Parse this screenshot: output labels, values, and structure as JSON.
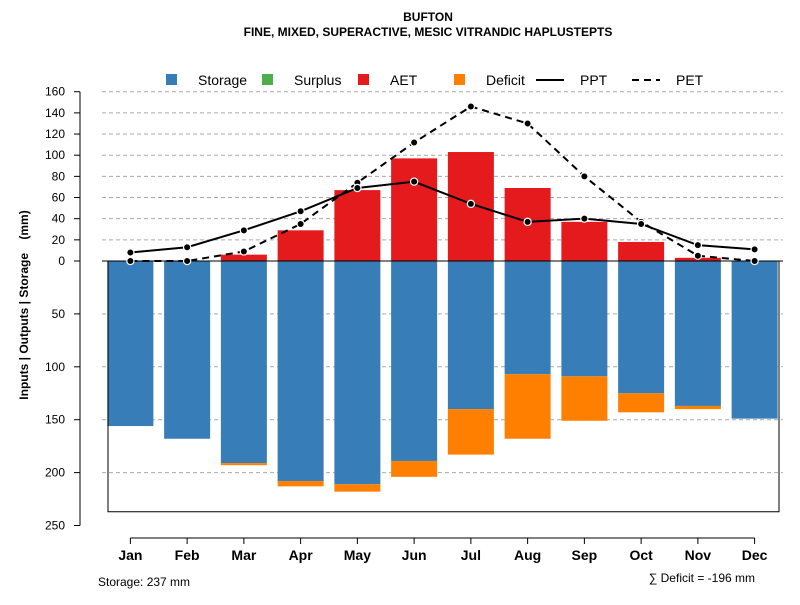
{
  "chart_data": {
    "type": "bar",
    "title": "BUFTON",
    "subtitle": "FINE, MIXED, SUPERACTIVE, MESIC VITRANDIC HAPLUSTEPTS",
    "ylabel": "Inputs | Outputs | Storage    (mm)",
    "categories": [
      "Jan",
      "Feb",
      "Mar",
      "Apr",
      "May",
      "Jun",
      "Jul",
      "Aug",
      "Sep",
      "Oct",
      "Nov",
      "Dec"
    ],
    "upper_ylim": [
      0,
      160
    ],
    "upper_ticks": [
      "0",
      "20",
      "40",
      "60",
      "80",
      "100",
      "120",
      "140",
      "160"
    ],
    "lower_ylim": [
      0,
      250
    ],
    "lower_ticks": [
      "50",
      "100",
      "150",
      "200",
      "250"
    ],
    "legend": [
      {
        "name": "Storage",
        "kind": "square",
        "color": "#377EB8"
      },
      {
        "name": "Surplus",
        "kind": "square",
        "color": "#4DAF4A"
      },
      {
        "name": "AET",
        "kind": "square",
        "color": "#E41A1C"
      },
      {
        "name": "Deficit",
        "kind": "square",
        "color": "#FF7F00"
      },
      {
        "name": "PPT",
        "kind": "solid-line",
        "color": "#000000"
      },
      {
        "name": "PET",
        "kind": "dashed-line",
        "color": "#000000"
      }
    ],
    "series": [
      {
        "name": "AET",
        "values": [
          0,
          0,
          6,
          29,
          67,
          97,
          103,
          69,
          37,
          18,
          3,
          0
        ]
      },
      {
        "name": "Storage",
        "values": [
          156,
          168,
          191,
          208,
          211,
          189,
          140,
          107,
          109,
          125,
          137,
          149
        ]
      },
      {
        "name": "Deficit",
        "values": [
          0,
          0,
          2,
          5,
          7,
          15,
          43,
          61,
          42,
          18,
          3,
          0
        ]
      },
      {
        "name": "Surplus",
        "values": [
          0,
          0,
          0,
          0,
          0,
          0,
          0,
          0,
          0,
          0,
          0,
          0
        ]
      },
      {
        "name": "PPT",
        "values": [
          8,
          13,
          29,
          47,
          69,
          75,
          54,
          37,
          40,
          35,
          15,
          11
        ]
      },
      {
        "name": "PET",
        "values": [
          0,
          0,
          9,
          35,
          74,
          112,
          146,
          130,
          80,
          37,
          5,
          0
        ]
      }
    ],
    "storage_capacity": 237,
    "footer_storage": "Storage: 237 mm",
    "footer_deficit": "∑ Deficit = -196 mm"
  }
}
